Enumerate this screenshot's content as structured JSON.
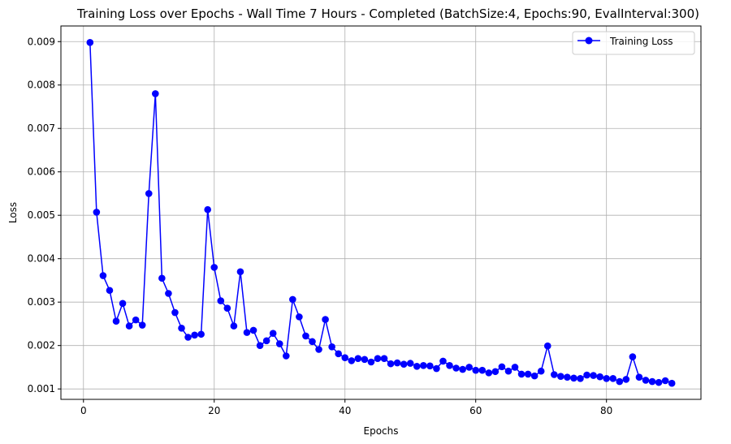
{
  "chart_data": {
    "type": "line",
    "title": "Training Loss over Epochs - Wall Time 7 Hours - Completed (BatchSize:4, Epochs:90, EvalInterval:300)",
    "xlabel": "Epochs",
    "ylabel": "Loss",
    "xlim": [
      -3.45,
      94.45
    ],
    "ylim": [
      0.00076,
      0.00936
    ],
    "x_ticks": [
      0,
      20,
      40,
      60,
      80
    ],
    "x_tick_labels": [
      "0",
      "20",
      "40",
      "60",
      "80"
    ],
    "y_ticks": [
      0.001,
      0.002,
      0.003,
      0.004,
      0.005,
      0.006,
      0.007,
      0.008,
      0.009
    ],
    "y_tick_labels": [
      "0.001",
      "0.002",
      "0.003",
      "0.004",
      "0.005",
      "0.006",
      "0.007",
      "0.008",
      "0.009"
    ],
    "grid": true,
    "legend_position": "top-right",
    "color": "#0000ff",
    "series": [
      {
        "name": "Training Loss",
        "marker": "circle",
        "x": [
          1,
          2,
          3,
          4,
          5,
          6,
          7,
          8,
          9,
          10,
          11,
          12,
          13,
          14,
          15,
          16,
          17,
          18,
          19,
          20,
          21,
          22,
          23,
          24,
          25,
          26,
          27,
          28,
          29,
          30,
          31,
          32,
          33,
          34,
          35,
          36,
          37,
          38,
          39,
          40,
          41,
          42,
          43,
          44,
          45,
          46,
          47,
          48,
          49,
          50,
          51,
          52,
          53,
          54,
          55,
          56,
          57,
          58,
          59,
          60,
          61,
          62,
          63,
          64,
          65,
          66,
          67,
          68,
          69,
          70,
          71,
          72,
          73,
          74,
          75,
          76,
          77,
          78,
          79,
          80,
          81,
          82,
          83,
          84,
          85,
          86,
          87,
          88,
          89,
          90
        ],
        "values": [
          0.00898,
          0.00507,
          0.00361,
          0.00327,
          0.00256,
          0.00297,
          0.00245,
          0.00259,
          0.00247,
          0.0055,
          0.0078,
          0.00355,
          0.0032,
          0.00276,
          0.0024,
          0.00219,
          0.00224,
          0.00226,
          0.00513,
          0.0038,
          0.00303,
          0.00286,
          0.00245,
          0.0037,
          0.0023,
          0.00235,
          0.002,
          0.00211,
          0.00228,
          0.00204,
          0.00176,
          0.00306,
          0.00266,
          0.00222,
          0.00209,
          0.00191,
          0.0026,
          0.00197,
          0.00181,
          0.00172,
          0.00165,
          0.0017,
          0.00168,
          0.00162,
          0.0017,
          0.0017,
          0.00158,
          0.0016,
          0.00157,
          0.00159,
          0.00152,
          0.00154,
          0.00153,
          0.00147,
          0.00164,
          0.00154,
          0.00148,
          0.00145,
          0.0015,
          0.00143,
          0.00143,
          0.00137,
          0.0014,
          0.00151,
          0.00141,
          0.0015,
          0.00134,
          0.00134,
          0.0013,
          0.00141,
          0.00199,
          0.00133,
          0.00129,
          0.00127,
          0.00125,
          0.00124,
          0.00132,
          0.00131,
          0.00128,
          0.00124,
          0.00124,
          0.00117,
          0.00122,
          0.00174,
          0.00127,
          0.0012,
          0.00117,
          0.00115,
          0.00119,
          0.00113
        ]
      }
    ]
  }
}
